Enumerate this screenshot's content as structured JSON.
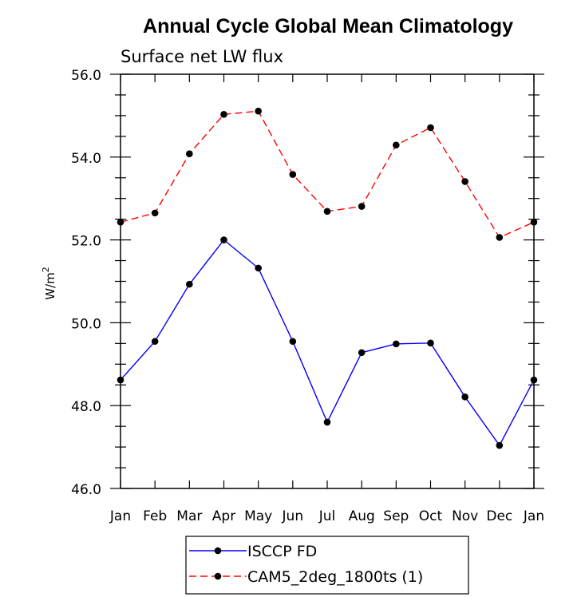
{
  "chart_data": {
    "type": "line",
    "title": "Annual Cycle Global Mean Climatology",
    "subtitle": "Surface net LW flux",
    "ylabel": "W/m",
    "ylabel_superscript": "2",
    "xlabel": "",
    "categories": [
      "Jan",
      "Feb",
      "Mar",
      "Apr",
      "May",
      "Jun",
      "Jul",
      "Aug",
      "Sep",
      "Oct",
      "Nov",
      "Dec",
      "Jan"
    ],
    "ylim": [
      46.0,
      56.0
    ],
    "yticks": [
      "46.0",
      "48.0",
      "50.0",
      "52.0",
      "54.0",
      "56.0"
    ],
    "grid": false,
    "legend_position": "bottom-center",
    "series": [
      {
        "name": "ISCCP FD",
        "color": "#0000ff",
        "dash": "solid",
        "values": [
          48.62,
          49.55,
          50.93,
          52.0,
          51.32,
          49.55,
          47.6,
          49.28,
          49.49,
          49.51,
          48.21,
          47.04,
          48.62
        ]
      },
      {
        "name": "CAM5_2deg_1800ts (1)",
        "color": "#ff0000",
        "dash": "dashed",
        "values": [
          52.43,
          52.65,
          54.08,
          55.03,
          55.11,
          53.58,
          52.69,
          52.81,
          54.29,
          54.71,
          53.41,
          52.06,
          52.43
        ]
      }
    ]
  }
}
